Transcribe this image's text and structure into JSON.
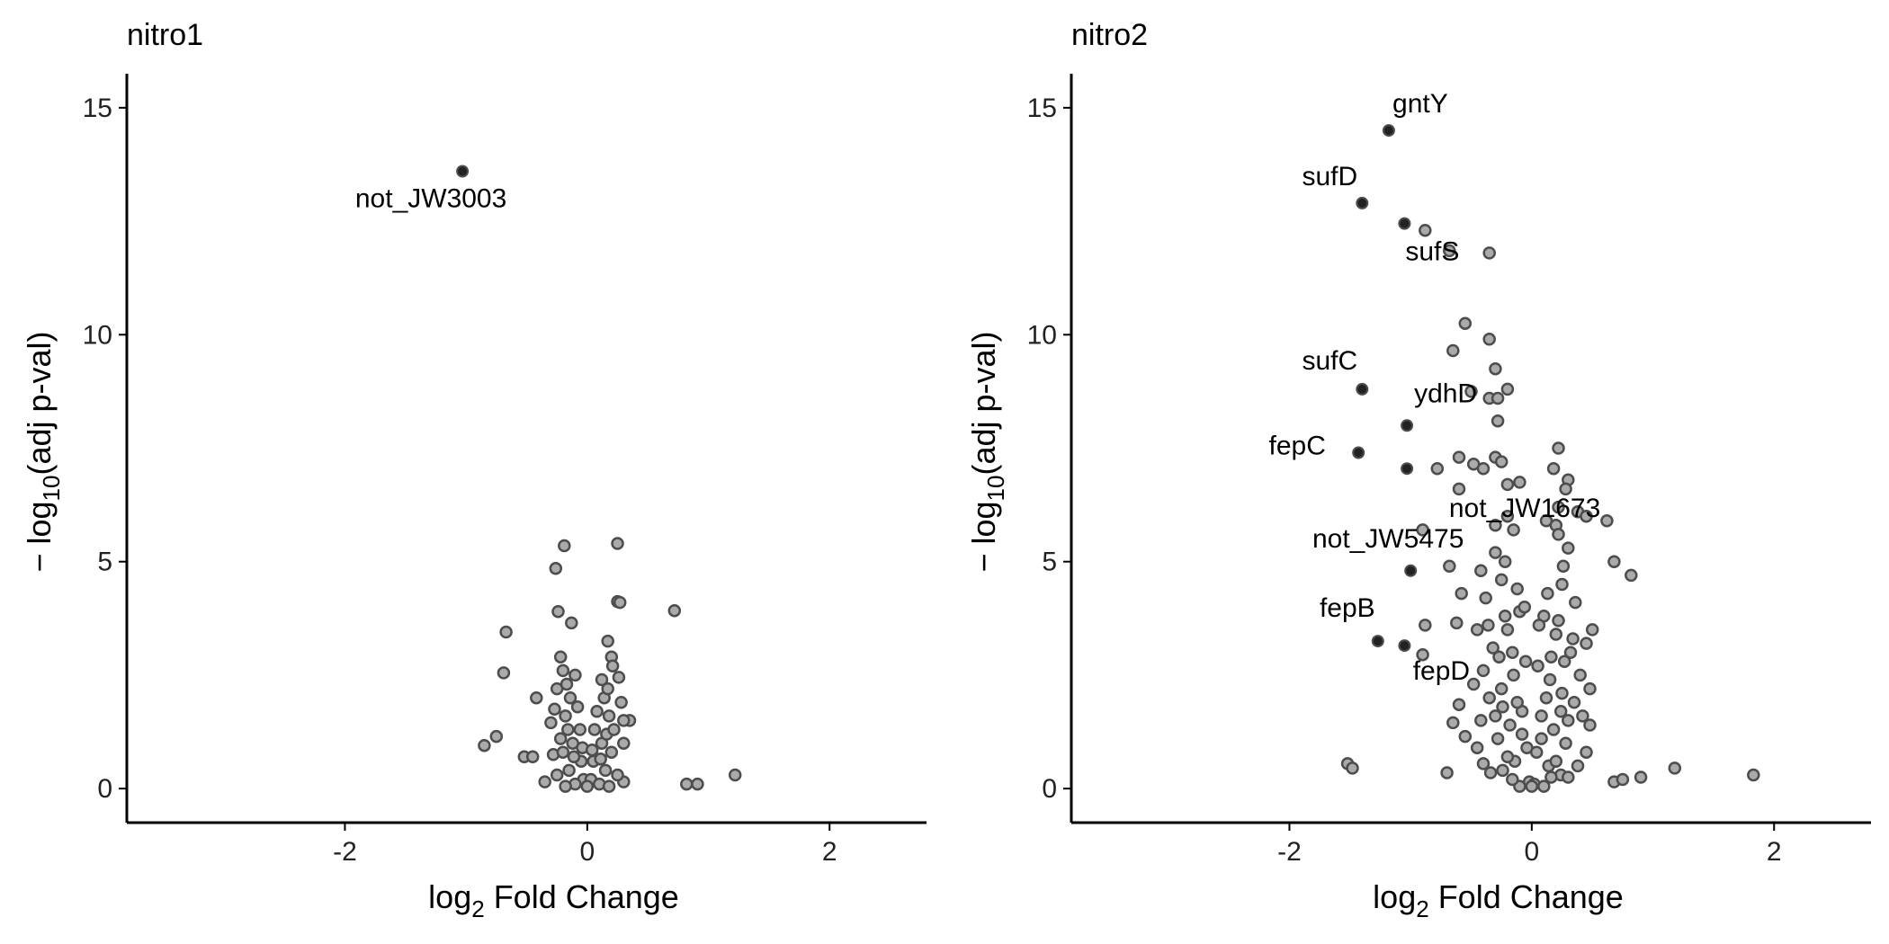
{
  "chart_data": [
    {
      "type": "scatter",
      "title": "nitro1",
      "xlabel": "log2 Fold Change",
      "ylabel": "− log10(adj p-val)",
      "xlim": [
        -3.8,
        2.8
      ],
      "ylim": [
        -0.75,
        15.75
      ],
      "xticks": [
        -2,
        0,
        2
      ],
      "yticks": [
        0,
        5,
        10,
        15
      ],
      "grid": false,
      "colors": {
        "highlight": "#222222",
        "point": "#aaaaaa",
        "point_edge": "#4d4d4d"
      },
      "highlighted": [
        {
          "x": -1.03,
          "y": 13.6,
          "label": "not_JW3003"
        }
      ],
      "points": [
        [
          0.25,
          5.4
        ],
        [
          -0.19,
          5.35
        ],
        [
          -0.26,
          4.85
        ],
        [
          0.25,
          4.12
        ],
        [
          0.27,
          4.1
        ],
        [
          0.72,
          3.92
        ],
        [
          -0.24,
          3.9
        ],
        [
          -0.13,
          3.65
        ],
        [
          -0.67,
          3.45
        ],
        [
          0.17,
          3.25
        ],
        [
          -0.69,
          2.55
        ],
        [
          -0.42,
          2.0
        ],
        [
          -0.75,
          1.15
        ],
        [
          -0.85,
          0.95
        ],
        [
          -0.52,
          0.7
        ],
        [
          -0.45,
          0.7
        ],
        [
          0.35,
          1.5
        ],
        [
          0.3,
          1.5
        ],
        [
          0.82,
          0.1
        ],
        [
          0.91,
          0.1
        ],
        [
          1.22,
          0.3
        ],
        [
          -0.22,
          2.9
        ],
        [
          0.2,
          2.9
        ],
        [
          -0.25,
          2.2
        ],
        [
          0.26,
          2.45
        ],
        [
          -0.3,
          1.45
        ],
        [
          0.3,
          1.0
        ],
        [
          -0.28,
          0.75
        ],
        [
          -0.35,
          0.15
        ],
        [
          0.3,
          0.15
        ],
        [
          -0.1,
          2.5
        ],
        [
          0.12,
          2.4
        ],
        [
          -0.14,
          2.0
        ],
        [
          0.14,
          2.0
        ],
        [
          -0.18,
          1.6
        ],
        [
          0.18,
          1.6
        ],
        [
          -0.06,
          1.3
        ],
        [
          0.06,
          1.3
        ],
        [
          -0.12,
          1.0
        ],
        [
          0.12,
          1.0
        ],
        [
          -0.2,
          0.8
        ],
        [
          0.2,
          0.8
        ],
        [
          -0.05,
          0.6
        ],
        [
          0.05,
          0.6
        ],
        [
          -0.15,
          0.4
        ],
        [
          0.15,
          0.4
        ],
        [
          -0.25,
          0.3
        ],
        [
          0.25,
          0.3
        ],
        [
          -0.03,
          0.2
        ],
        [
          0.03,
          0.2
        ],
        [
          -0.1,
          0.1
        ],
        [
          0.1,
          0.1
        ],
        [
          -0.18,
          0.05
        ],
        [
          0.18,
          0.05
        ],
        [
          0.0,
          0.05
        ],
        [
          -0.08,
          1.8
        ],
        [
          0.08,
          1.7
        ],
        [
          -0.16,
          1.3
        ],
        [
          0.16,
          1.2
        ],
        [
          -0.22,
          1.1
        ],
        [
          0.22,
          1.3
        ],
        [
          -0.04,
          0.9
        ],
        [
          0.04,
          0.85
        ],
        [
          -0.11,
          0.7
        ],
        [
          0.11,
          0.65
        ],
        [
          -0.2,
          2.6
        ],
        [
          0.21,
          2.7
        ],
        [
          -0.17,
          2.3
        ],
        [
          0.17,
          2.2
        ],
        [
          -0.27,
          1.75
        ],
        [
          0.28,
          1.9
        ]
      ]
    },
    {
      "type": "scatter",
      "title": "nitro2",
      "xlabel": "log2 Fold Change",
      "ylabel": "− log10(adj p-val)",
      "xlim": [
        -3.8,
        2.8
      ],
      "ylim": [
        -0.75,
        15.75
      ],
      "xticks": [
        -2,
        0,
        2
      ],
      "yticks": [
        0,
        5,
        10,
        15
      ],
      "grid": false,
      "colors": {
        "highlight": "#222222",
        "point": "#aaaaaa",
        "point_edge": "#4d4d4d"
      },
      "highlighted": [
        {
          "x": -1.18,
          "y": 14.5,
          "label": "gntY"
        },
        {
          "x": -1.4,
          "y": 12.9,
          "label": "sufD"
        },
        {
          "x": -1.05,
          "y": 12.45,
          "label": "sufS"
        },
        {
          "x": -1.4,
          "y": 8.8,
          "label": "sufC"
        },
        {
          "x": -1.03,
          "y": 8.0,
          "label": "ydhD"
        },
        {
          "x": -1.43,
          "y": 7.4,
          "label": "fepC"
        },
        {
          "x": -1.03,
          "y": 7.05,
          "label": "not_JW1673"
        },
        {
          "x": -1.0,
          "y": 4.8,
          "label": "not_JW5475"
        },
        {
          "x": -1.27,
          "y": 3.25,
          "label": "fepB"
        },
        {
          "x": -1.05,
          "y": 3.15,
          "label": "fepD"
        }
      ],
      "points": [
        [
          -0.88,
          12.3
        ],
        [
          -0.68,
          11.85
        ],
        [
          -0.35,
          11.8
        ],
        [
          -0.55,
          10.25
        ],
        [
          -0.35,
          9.9
        ],
        [
          -0.65,
          9.65
        ],
        [
          -0.3,
          9.25
        ],
        [
          -0.5,
          8.75
        ],
        [
          -0.2,
          8.8
        ],
        [
          -0.35,
          8.6
        ],
        [
          -0.28,
          8.6
        ],
        [
          -0.28,
          8.1
        ],
        [
          -0.78,
          7.05
        ],
        [
          -0.6,
          7.3
        ],
        [
          -0.3,
          7.3
        ],
        [
          -0.48,
          7.15
        ],
        [
          -0.25,
          7.2
        ],
        [
          -0.4,
          7.05
        ],
        [
          -0.6,
          6.6
        ],
        [
          -0.2,
          6.7
        ],
        [
          -0.1,
          6.75
        ],
        [
          0.22,
          7.5
        ],
        [
          0.18,
          7.05
        ],
        [
          0.3,
          6.8
        ],
        [
          0.28,
          6.6
        ],
        [
          0.22,
          6.2
        ],
        [
          0.38,
          6.1
        ],
        [
          0.45,
          6.0
        ],
        [
          0.62,
          5.9
        ],
        [
          0.2,
          5.8
        ],
        [
          0.12,
          5.9
        ],
        [
          -0.9,
          5.7
        ],
        [
          -0.3,
          5.8
        ],
        [
          -0.15,
          5.7
        ],
        [
          0.68,
          5.0
        ],
        [
          0.82,
          4.7
        ],
        [
          -0.68,
          4.9
        ],
        [
          -0.58,
          4.3
        ],
        [
          -0.42,
          4.8
        ],
        [
          -0.88,
          3.6
        ],
        [
          -0.62,
          3.65
        ],
        [
          -0.45,
          3.5
        ],
        [
          -0.9,
          2.95
        ],
        [
          -0.6,
          1.85
        ],
        [
          -0.65,
          1.45
        ],
        [
          -0.55,
          1.15
        ],
        [
          -1.52,
          0.55
        ],
        [
          -1.48,
          0.45
        ],
        [
          -0.7,
          0.35
        ],
        [
          0.68,
          0.15
        ],
        [
          0.75,
          0.2
        ],
        [
          0.9,
          0.25
        ],
        [
          1.18,
          0.45
        ],
        [
          1.83,
          0.3
        ],
        [
          0.48,
          1.4
        ],
        [
          0.5,
          3.5
        ],
        [
          0.45,
          3.2
        ],
        [
          -0.3,
          5.2
        ],
        [
          0.3,
          5.3
        ],
        [
          -0.25,
          4.6
        ],
        [
          0.25,
          4.5
        ],
        [
          -0.38,
          4.2
        ],
        [
          0.36,
          4.1
        ],
        [
          -0.1,
          3.9
        ],
        [
          0.1,
          3.8
        ],
        [
          -0.2,
          3.5
        ],
        [
          0.2,
          3.4
        ],
        [
          -0.32,
          3.1
        ],
        [
          0.32,
          3.0
        ],
        [
          -0.05,
          2.8
        ],
        [
          0.05,
          2.7
        ],
        [
          -0.15,
          2.5
        ],
        [
          0.15,
          2.4
        ],
        [
          -0.25,
          2.2
        ],
        [
          0.25,
          2.1
        ],
        [
          -0.35,
          2.0
        ],
        [
          0.35,
          1.9
        ],
        [
          -0.08,
          1.7
        ],
        [
          0.08,
          1.6
        ],
        [
          -0.18,
          1.4
        ],
        [
          0.18,
          1.3
        ],
        [
          -0.28,
          1.1
        ],
        [
          0.28,
          1.0
        ],
        [
          -0.04,
          0.9
        ],
        [
          0.04,
          0.8
        ],
        [
          -0.14,
          0.6
        ],
        [
          0.14,
          0.5
        ],
        [
          -0.24,
          0.4
        ],
        [
          0.24,
          0.3
        ],
        [
          -0.34,
          0.35
        ],
        [
          0.3,
          0.25
        ],
        [
          -0.02,
          0.15
        ],
        [
          0.02,
          0.1
        ],
        [
          -0.1,
          0.05
        ],
        [
          0.1,
          0.05
        ],
        [
          0.0,
          0.05
        ],
        [
          -0.12,
          4.4
        ],
        [
          0.13,
          4.3
        ],
        [
          -0.22,
          3.8
        ],
        [
          0.22,
          3.7
        ],
        [
          -0.27,
          2.9
        ],
        [
          0.27,
          2.8
        ],
        [
          -0.4,
          2.6
        ],
        [
          0.4,
          2.5
        ],
        [
          -0.42,
          1.5
        ],
        [
          0.42,
          1.6
        ],
        [
          -0.45,
          0.9
        ],
        [
          0.45,
          0.8
        ],
        [
          -0.2,
          6.0
        ],
        [
          0.22,
          5.6
        ],
        [
          -0.06,
          4.0
        ],
        [
          0.06,
          3.6
        ],
        [
          -0.16,
          3.0
        ],
        [
          0.16,
          2.9
        ],
        [
          -0.3,
          1.6
        ],
        [
          0.3,
          1.5
        ],
        [
          -0.12,
          1.9
        ],
        [
          0.12,
          2.0
        ],
        [
          -0.2,
          0.7
        ],
        [
          0.2,
          0.6
        ],
        [
          -0.08,
          1.2
        ],
        [
          0.08,
          1.1
        ],
        [
          -0.36,
          3.6
        ],
        [
          0.34,
          3.3
        ],
        [
          -0.22,
          5.0
        ],
        [
          0.26,
          4.9
        ],
        [
          -0.16,
          0.2
        ],
        [
          0.16,
          0.25
        ],
        [
          -0.4,
          0.55
        ],
        [
          0.38,
          0.5
        ],
        [
          -0.48,
          2.3
        ],
        [
          0.48,
          2.2
        ],
        [
          -0.24,
          1.8
        ],
        [
          0.24,
          1.7
        ]
      ]
    }
  ]
}
